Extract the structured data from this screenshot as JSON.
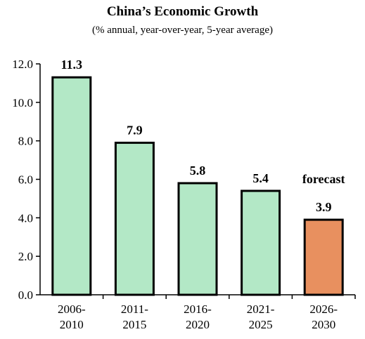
{
  "chart_data": {
    "type": "bar",
    "title": "China’s Economic Growth",
    "subtitle": "(% annual, year-over-year, 5-year average)",
    "xlabel": "",
    "ylabel": "",
    "categories": [
      [
        "2006-",
        "2010"
      ],
      [
        "2011-",
        "2015"
      ],
      [
        "2016-",
        "2020"
      ],
      [
        "2021-",
        "2025"
      ],
      [
        "2026-",
        "2030"
      ]
    ],
    "values": [
      11.3,
      7.9,
      5.8,
      5.4,
      3.9
    ],
    "data_labels": [
      "11.3",
      "7.9",
      "5.8",
      "5.4",
      "3.9"
    ],
    "bar_colors": [
      "#b3e8c6",
      "#b3e8c6",
      "#b3e8c6",
      "#b3e8c6",
      "#e8905f"
    ],
    "annotations": [
      {
        "category_index": 4,
        "text": "forecast"
      }
    ],
    "ylim": [
      0,
      12
    ],
    "yticks": [
      "0.0",
      "2.0",
      "4.0",
      "6.0",
      "8.0",
      "10.0",
      "12.0"
    ],
    "ytick_values": [
      0,
      2,
      4,
      6,
      8,
      10,
      12
    ],
    "grid": false,
    "legend": "none"
  }
}
